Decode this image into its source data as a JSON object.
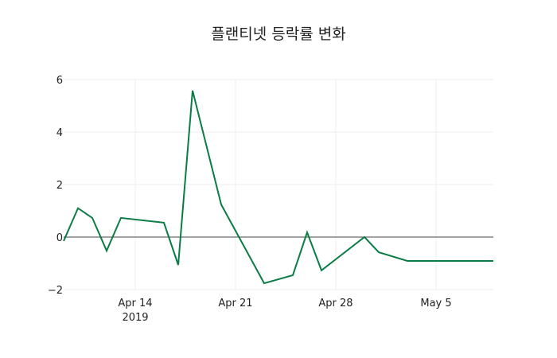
{
  "chart_data": {
    "type": "line",
    "title": "플랜티넷 등락률 변화",
    "xlabel": "",
    "ylabel": "",
    "x": [
      "2019-04-09",
      "2019-04-10",
      "2019-04-11",
      "2019-04-12",
      "2019-04-13",
      "2019-04-16",
      "2019-04-17",
      "2019-04-18",
      "2019-04-20",
      "2019-04-23",
      "2019-04-25",
      "2019-04-26",
      "2019-04-27",
      "2019-04-30",
      "2019-05-01",
      "2019-05-03",
      "2019-05-09"
    ],
    "series": [
      {
        "name": "등락률",
        "color": "#0a7c44",
        "values": [
          -0.15,
          1.1,
          0.73,
          -0.52,
          0.73,
          0.55,
          -1.06,
          5.58,
          1.24,
          -1.76,
          -1.45,
          0.18,
          -1.27,
          0.0,
          -0.58,
          -0.91,
          -0.91
        ]
      }
    ],
    "ylim": [
      -2,
      6
    ],
    "yticks": [
      -2,
      0,
      2,
      4,
      6
    ],
    "ytick_labels": [
      "−2",
      "0",
      "2",
      "4",
      "6"
    ],
    "xlim": [
      "2019-04-09",
      "2019-05-09"
    ],
    "xticks": [
      "2019-04-14",
      "2019-04-21",
      "2019-04-28",
      "2019-05-05"
    ],
    "xtick_labels": [
      "Apr 14",
      "Apr 21",
      "Apr 28",
      "May 5"
    ],
    "xtick_sublabel": "2019",
    "grid": true,
    "legend": false
  }
}
